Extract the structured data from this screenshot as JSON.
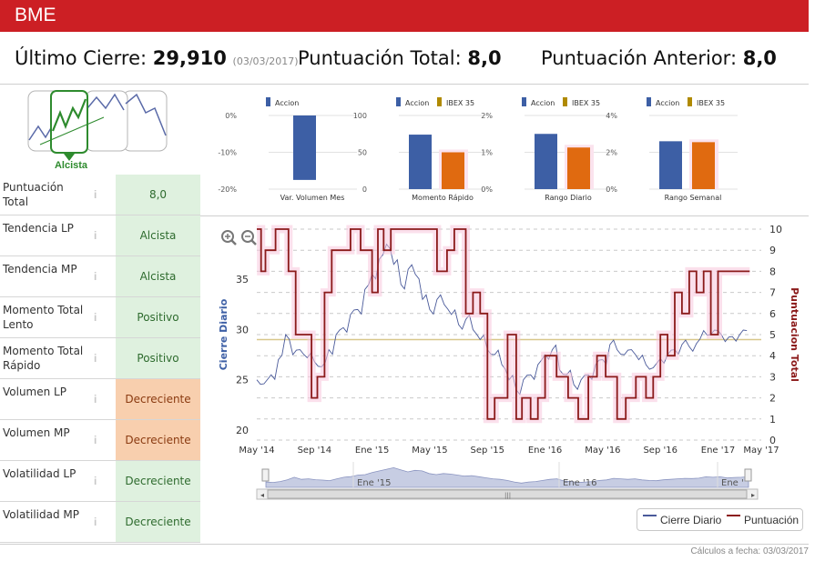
{
  "header": {
    "ticker": "BME",
    "accent_color": "#cc1f24"
  },
  "summary": {
    "last_close_label": "Último Cierre:",
    "last_close_value": "29,910",
    "last_close_date": "(03/03/2017)",
    "total_score_label": "Puntuación Total:",
    "total_score_value": "8,0",
    "previous_score_label": "Puntuación Anterior:",
    "previous_score_value": "8,0"
  },
  "trend_badge": {
    "label": "Alcista",
    "icon": "trend-thumbnails-icon"
  },
  "indicators": [
    {
      "label": "Puntuación Total",
      "value": "8,0",
      "status": "good"
    },
    {
      "label": "Tendencia LP",
      "value": "Alcista",
      "status": "good"
    },
    {
      "label": "Tendencia MP",
      "value": "Alcista",
      "status": "good"
    },
    {
      "label": "Momento Total Lento",
      "value": "Positivo",
      "status": "good"
    },
    {
      "label": "Momento Total Rápido",
      "value": "Positivo",
      "status": "good"
    },
    {
      "label": "Volumen LP",
      "value": "Decreciente",
      "status": "bad"
    },
    {
      "label": "Volumen MP",
      "value": "Decreciente",
      "status": "bad"
    },
    {
      "label": "Volatilidad LP",
      "value": "Decreciente",
      "status": "good"
    },
    {
      "label": "Volatilidad MP",
      "value": "Decreciente",
      "status": "good"
    }
  ],
  "info_icon": "i",
  "colors": {
    "accion": "#3d5fa5",
    "ibex": "#e06a10",
    "ibex_legend": "#b08a00",
    "price_line": "#4a5a9a",
    "score_line": "#8b1a1a",
    "ref_line": "#d8c78a"
  },
  "chart_data": [
    {
      "type": "bar",
      "title": "Var. Volumen Mes",
      "legend": [
        "Accion"
      ],
      "series": [
        {
          "name": "Accion",
          "values": [
            -17.5
          ]
        }
      ],
      "ylim": [
        -20,
        0
      ],
      "yticks": [
        "0%",
        "-10%",
        "-20%"
      ],
      "ytick_values": [
        0,
        -10,
        -20
      ]
    },
    {
      "type": "bar",
      "title": "Momento Rápido",
      "legend": [
        "Accion",
        "IBEX 35"
      ],
      "series": [
        {
          "name": "Accion",
          "values": [
            74
          ]
        },
        {
          "name": "IBEX 35",
          "values": [
            50
          ]
        }
      ],
      "ylim": [
        0,
        100
      ],
      "yticks": [
        "100",
        "50",
        "0"
      ],
      "ytick_values": [
        100,
        50,
        0
      ]
    },
    {
      "type": "bar",
      "title": "Rango Diario",
      "legend": [
        "Accion",
        "IBEX 35"
      ],
      "series": [
        {
          "name": "Accion",
          "values": [
            1.5
          ]
        },
        {
          "name": "IBEX 35",
          "values": [
            1.13
          ]
        }
      ],
      "ylim": [
        0,
        2
      ],
      "yticks": [
        "2%",
        "1%",
        "0%"
      ],
      "ytick_values": [
        2,
        1,
        0
      ]
    },
    {
      "type": "bar",
      "title": "Rango Semanal",
      "legend": [
        "Accion",
        "IBEX 35"
      ],
      "series": [
        {
          "name": "Accion",
          "values": [
            2.6
          ]
        },
        {
          "name": "IBEX 35",
          "values": [
            2.55
          ]
        }
      ],
      "ylim": [
        0,
        4
      ],
      "yticks": [
        "4%",
        "2%",
        "0%"
      ],
      "ytick_values": [
        4,
        2,
        0
      ]
    },
    {
      "type": "line",
      "title": "",
      "ylabel": "Cierre Diario",
      "y2label": "Puntuacion Total",
      "ylim": [
        19,
        40
      ],
      "y2lim": [
        0,
        10
      ],
      "yticks": [
        "35",
        "30",
        "25",
        "20"
      ],
      "ytick_values": [
        35,
        30,
        25,
        20
      ],
      "y2ticks": [
        "10",
        "9",
        "8",
        "7",
        "6",
        "5",
        "4",
        "3",
        "2",
        "1",
        "0"
      ],
      "reference_value": 29.0,
      "xlim": [
        0,
        35
      ],
      "xticks": [
        "May '14",
        "Sep '14",
        "Ene '15",
        "May '15",
        "Sep '15",
        "Ene '16",
        "May '16",
        "Sep '16",
        "Ene '17",
        "May '17"
      ],
      "xtick_values": [
        0,
        4,
        8,
        12,
        16,
        20,
        24,
        28,
        32,
        35
      ],
      "series": [
        {
          "name": "Cierre Diario",
          "axis": "left",
          "x": [
            0,
            0.5,
            1,
            1.5,
            2,
            2.5,
            3,
            3.5,
            4,
            4.5,
            5,
            5.5,
            6,
            6.5,
            7,
            7.5,
            8,
            8.5,
            9,
            9.5,
            10,
            10.5,
            11,
            11.5,
            12,
            12.5,
            13,
            13.5,
            14,
            14.5,
            15,
            15.5,
            16,
            16.5,
            17,
            17.5,
            18,
            18.5,
            19,
            19.5,
            20,
            20.5,
            21,
            21.5,
            22,
            22.5,
            23,
            23.5,
            24,
            24.5,
            25,
            25.5,
            26,
            26.5,
            27,
            27.5,
            28,
            28.5,
            29,
            29.5,
            30,
            30.5,
            31,
            31.5,
            32,
            32.5,
            33,
            33.5,
            34
          ],
          "values": [
            25,
            24.6,
            25.5,
            27,
            29.5,
            27.5,
            28,
            27.2,
            26.8,
            26.3,
            28,
            29.5,
            30.2,
            31.5,
            32,
            34,
            35.5,
            37,
            38.5,
            36.5,
            34.5,
            36,
            35.5,
            33,
            32,
            33,
            32.5,
            31.5,
            30.5,
            31,
            30,
            29,
            28,
            27.5,
            26.5,
            25,
            24,
            25,
            25.5,
            26.5,
            27.5,
            28,
            26,
            25.5,
            24.5,
            25,
            25.5,
            26.5,
            27,
            28.5,
            28,
            27.5,
            28,
            27,
            26.5,
            26.2,
            27.1,
            27.5,
            28,
            28.5,
            28.3,
            28.6,
            29.9,
            29.5,
            29.9,
            28.8,
            29.3,
            29.5,
            29.9
          ]
        },
        {
          "name": "Puntuación",
          "axis": "right",
          "x": [
            0,
            0.3,
            0.6,
            1.3,
            2.2,
            2.7,
            3.8,
            4.2,
            4.7,
            5.2,
            6,
            6.5,
            7.2,
            8,
            8.4,
            8.8,
            9.3,
            10.5,
            12.5,
            13.2,
            13.7,
            14.5,
            15,
            15.5,
            16,
            16.5,
            17,
            17.4,
            18,
            18.4,
            19,
            19.5,
            20,
            20.8,
            21.6,
            22.3,
            23,
            23.6,
            24.2,
            25,
            25.6,
            26.3,
            27,
            27.5,
            28,
            28.5,
            29,
            29.5,
            30,
            30.5,
            31,
            31.5,
            32,
            33,
            34
          ],
          "values": [
            10,
            8,
            9,
            10,
            8,
            5,
            2,
            3,
            7,
            9,
            9,
            10,
            9,
            7,
            10,
            9,
            10,
            10,
            8,
            9,
            10,
            6,
            7,
            6,
            1,
            2,
            2,
            5,
            1,
            2,
            1,
            2,
            4,
            3,
            2,
            1,
            3,
            4,
            3,
            1,
            2,
            3,
            2,
            3,
            5,
            4,
            7,
            6,
            8,
            7,
            8,
            5,
            8,
            8,
            8
          ]
        }
      ],
      "legend": [
        "Cierre Diario",
        "Puntuación"
      ],
      "navigator_labels": [
        "Ene '15",
        "Ene '16",
        "Ene '"
      ]
    }
  ],
  "footer": {
    "calc_date": "Cálculos a fecha: 03/03/2017"
  }
}
